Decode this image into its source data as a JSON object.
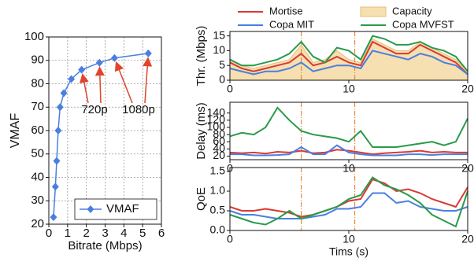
{
  "chart_data": [
    {
      "type": "line",
      "xlabel": "Bitrate (Mbps)",
      "ylabel": "VMAF",
      "x": [
        0.25,
        0.35,
        0.42,
        0.5,
        0.6,
        0.8,
        1.2,
        1.75,
        2.7,
        3.5,
        5.3
      ],
      "series": [
        {
          "name": "VMAF",
          "color": "#4a7fe0",
          "values": [
            23,
            36,
            47,
            60,
            70,
            76,
            82,
            86,
            89,
            91,
            93
          ]
        }
      ],
      "xlim": [
        0,
        6
      ],
      "xticks": [
        0,
        1,
        2,
        3,
        4,
        5,
        6
      ],
      "ylim": [
        20,
        100
      ],
      "yticks": [
        20,
        30,
        40,
        50,
        60,
        70,
        80,
        90,
        100
      ],
      "grid": true,
      "legend": "lower right",
      "annotations": [
        {
          "text": "720p",
          "points": [
            7,
            8
          ]
        },
        {
          "text": "1080p",
          "points": [
            9,
            10
          ]
        }
      ]
    },
    {
      "type": "line",
      "ylabel": "Thr. (Mbps)",
      "x": [
        0,
        1,
        2,
        3,
        4,
        5,
        6,
        7,
        8,
        9,
        10,
        11,
        12,
        13,
        14,
        15,
        16,
        17,
        18,
        19,
        20
      ],
      "series": [
        {
          "name": "Mortise",
          "color": "#d83a34",
          "values": [
            6,
            4,
            3,
            4,
            5,
            6,
            9,
            5,
            6,
            8,
            6,
            5,
            13,
            11,
            9,
            9,
            12,
            10,
            8,
            6,
            2
          ]
        },
        {
          "name": "Copa MIT",
          "color": "#4a7fe0",
          "values": [
            4,
            3,
            2,
            3,
            3,
            4,
            6,
            3,
            4,
            5,
            5,
            4,
            10,
            9,
            8,
            7,
            9,
            8,
            6,
            5,
            2
          ]
        },
        {
          "name": "Copa MVFST",
          "color": "#2a9a4a",
          "values": [
            7,
            5,
            5,
            6,
            7,
            9,
            13,
            8,
            6,
            11,
            10,
            7,
            15,
            14,
            12,
            12,
            13,
            11,
            10,
            8,
            3
          ]
        },
        {
          "name": "Capacity",
          "color": "#f6dfb0",
          "area": true,
          "values": [
            7,
            5,
            4,
            5,
            6,
            7,
            12,
            6,
            7,
            10,
            7,
            6,
            14,
            12,
            10,
            10,
            13,
            11,
            9,
            7,
            3
          ]
        }
      ],
      "xlim": [
        0,
        20
      ],
      "xticks": [
        0,
        10,
        20
      ],
      "ylim": [
        0,
        16.5
      ],
      "yticks": [
        0,
        5,
        10,
        15
      ],
      "grid": false,
      "vlines": [
        6,
        10.5
      ]
    },
    {
      "type": "line",
      "ylabel": "Delay (ms)",
      "x": [
        0,
        1,
        2,
        3,
        4,
        5,
        6,
        7,
        8,
        9,
        10,
        11,
        12,
        13,
        14,
        15,
        16,
        17,
        18,
        19,
        20
      ],
      "series": [
        {
          "color": "#d83a34",
          "values": [
            30,
            28,
            30,
            27,
            32,
            30,
            35,
            28,
            30,
            38,
            35,
            30,
            25,
            28,
            30,
            32,
            35,
            30,
            32,
            30,
            30
          ]
        },
        {
          "color": "#4a7fe0",
          "values": [
            25,
            25,
            22,
            22,
            23,
            25,
            45,
            25,
            25,
            50,
            30,
            25,
            22,
            22,
            22,
            25,
            25,
            23,
            25,
            25,
            25
          ]
        },
        {
          "color": "#2a9a4a",
          "values": [
            75,
            85,
            80,
            100,
            155,
            120,
            90,
            80,
            75,
            70,
            60,
            90,
            45,
            45,
            45,
            50,
            55,
            60,
            50,
            60,
            125
          ]
        }
      ],
      "xlim": [
        0,
        20
      ],
      "xticks": [
        0,
        10,
        20
      ],
      "ylim": [
        10,
        170
      ],
      "yticks": [
        20,
        40,
        60,
        80,
        100,
        120,
        140
      ],
      "grid": false,
      "vlines": [
        6,
        10.5
      ]
    },
    {
      "type": "line",
      "ylabel": "QoE",
      "xlabel": "Tims (s)",
      "x": [
        0,
        1,
        2,
        3,
        4,
        5,
        6,
        7,
        8,
        9,
        10,
        11,
        12,
        13,
        14,
        15,
        16,
        17,
        18,
        19,
        20
      ],
      "series": [
        {
          "color": "#d83a34",
          "values": [
            0.6,
            0.5,
            0.5,
            0.55,
            0.5,
            0.45,
            0.35,
            0.4,
            0.5,
            0.6,
            0.75,
            0.8,
            1.3,
            1.2,
            1.0,
            1.05,
            0.95,
            0.8,
            0.7,
            0.6,
            1.1
          ]
        },
        {
          "color": "#4a7fe0",
          "values": [
            0.5,
            0.4,
            0.4,
            0.35,
            0.3,
            0.3,
            0.3,
            0.35,
            0.4,
            0.55,
            0.55,
            0.6,
            0.95,
            0.95,
            0.7,
            0.75,
            0.6,
            0.55,
            0.5,
            0.5,
            0.6
          ]
        },
        {
          "color": "#2a9a4a",
          "values": [
            0.4,
            0.3,
            0.2,
            0.15,
            0.3,
            0.5,
            0.3,
            0.4,
            0.5,
            0.6,
            0.8,
            0.9,
            1.35,
            1.15,
            1.05,
            0.9,
            0.7,
            0.4,
            0.25,
            0.1,
            1.0
          ]
        }
      ],
      "xlim": [
        0,
        20
      ],
      "xticks": [
        0,
        10,
        20
      ],
      "ylim": [
        0,
        1.6
      ],
      "yticks": [
        {
          "value": 0,
          "label": "0.0"
        },
        0.5,
        {
          "value": 1,
          "label": "1.0"
        },
        1.5
      ],
      "grid": false,
      "vlines": [
        6,
        10.5
      ]
    }
  ]
}
